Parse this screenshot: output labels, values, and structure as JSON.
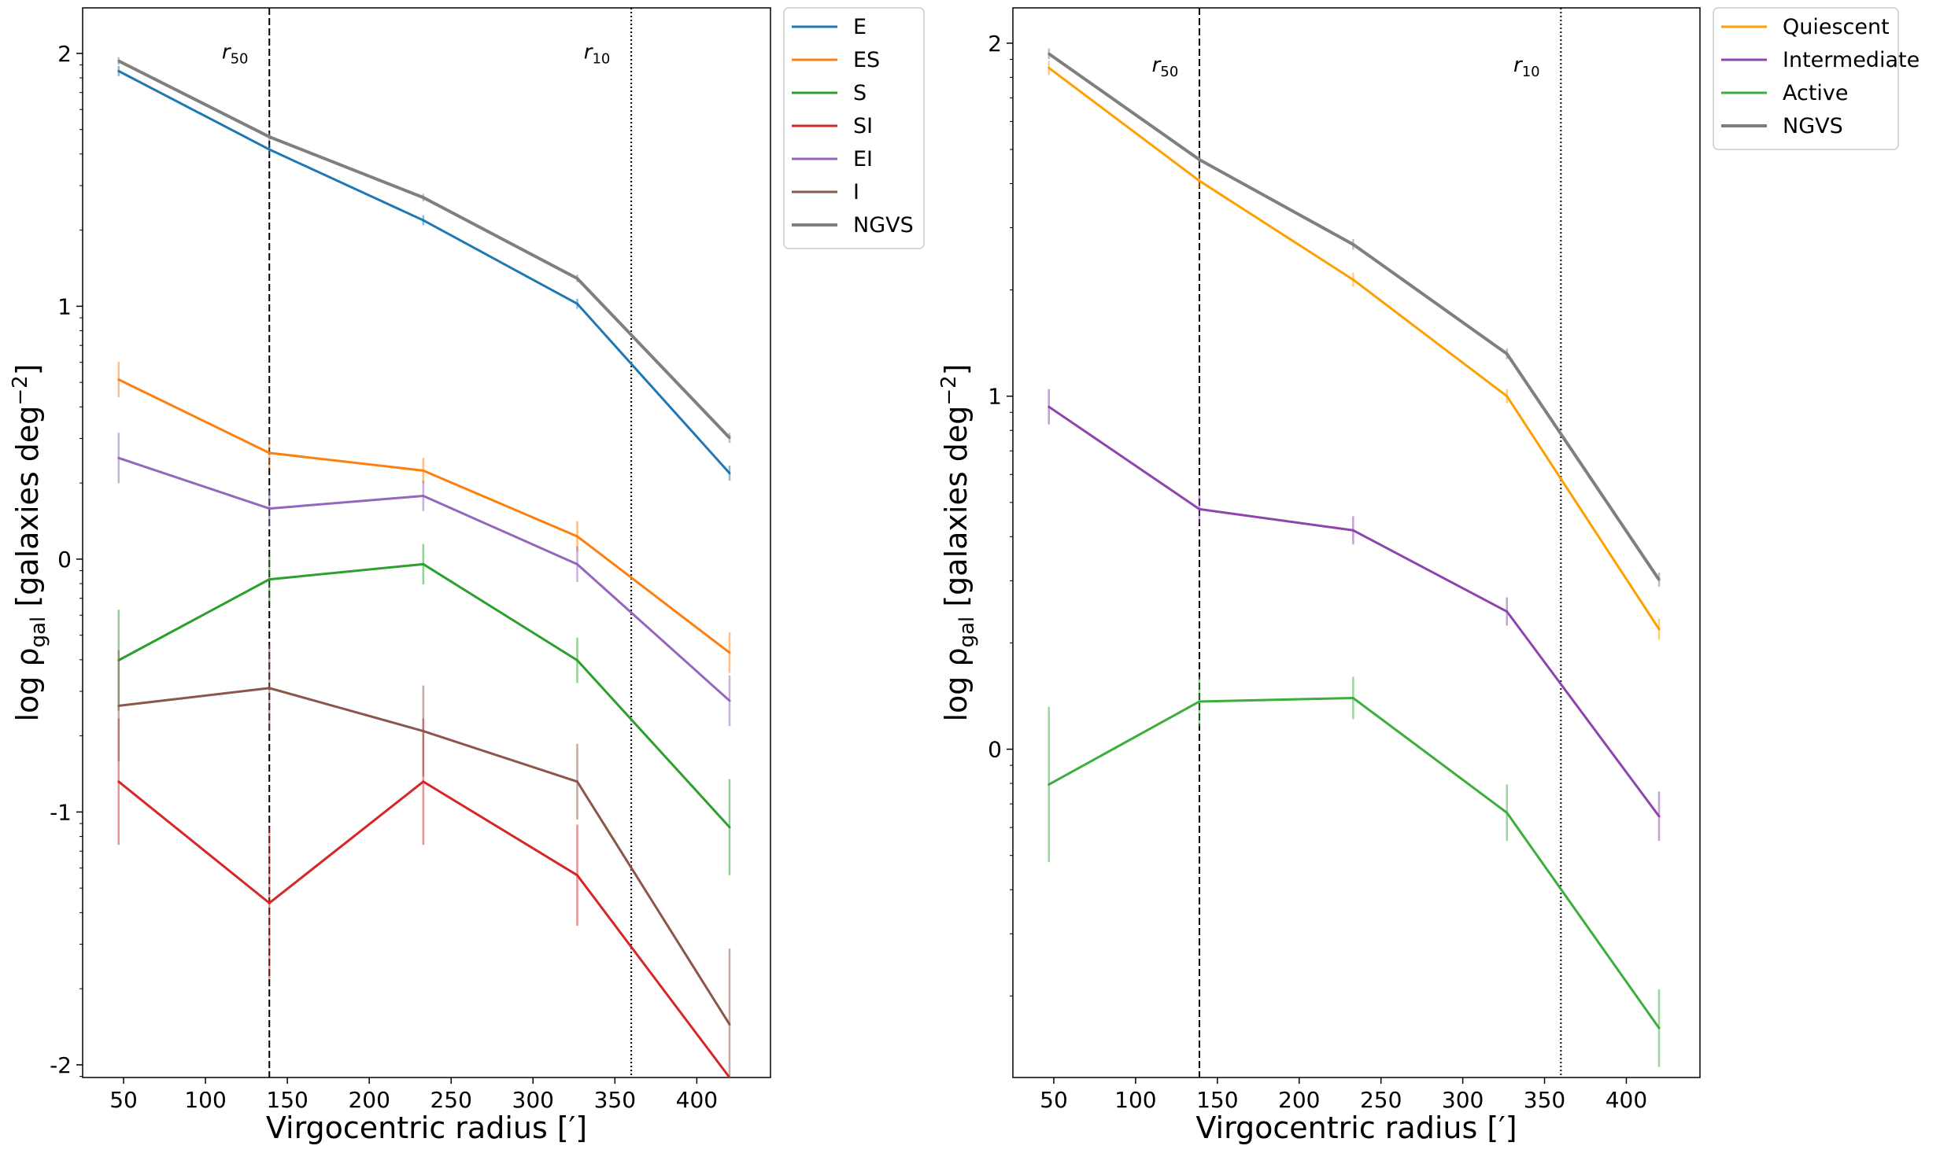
{
  "chart_data": [
    {
      "type": "line",
      "panel": "left",
      "xlabel": "Virgocentric radius [′]",
      "ylabel": "log ρgal [galaxies deg−2]",
      "xlim": [
        25,
        445
      ],
      "ylim": [
        -2.05,
        2.18
      ],
      "xticks": [
        50,
        100,
        150,
        200,
        250,
        300,
        350,
        400
      ],
      "yticks": [
        -2,
        -1,
        0,
        1,
        2
      ],
      "ytick_labels": [
        "-2",
        "-1",
        "0",
        "1",
        "2"
      ],
      "minor_yticks": true,
      "grid": false,
      "legend_position": "outside-upper-right",
      "vlines": [
        {
          "x": 139,
          "style": "dashed",
          "label": "r",
          "label_sub": "50",
          "label_x": 110,
          "label_y": 1.98
        },
        {
          "x": 360,
          "style": "dotted",
          "label": "r",
          "label_sub": "10",
          "label_x": 331,
          "label_y": 1.98
        }
      ],
      "x": [
        47,
        139,
        233,
        327,
        420
      ],
      "series": [
        {
          "name": "E",
          "color": "#1f77b4",
          "values": [
            1.93,
            1.62,
            1.34,
            1.01,
            0.34
          ],
          "errors": [
            0.02,
            0.02,
            0.02,
            0.02,
            0.03
          ]
        },
        {
          "name": "ES",
          "color": "#ff7f0e",
          "values": [
            0.71,
            0.42,
            0.35,
            0.09,
            -0.37
          ],
          "errors": [
            0.07,
            0.06,
            0.05,
            0.06,
            0.08
          ]
        },
        {
          "name": "S",
          "color": "#2ca02c",
          "values": [
            -0.4,
            -0.08,
            -0.02,
            -0.4,
            -1.06
          ],
          "errors": [
            0.2,
            0.09,
            0.08,
            0.09,
            0.19
          ]
        },
        {
          "name": "SI",
          "color": "#d62728",
          "values": [
            -0.88,
            -1.36,
            -0.88,
            -1.25,
            -2.05
          ],
          "errors": [
            0.25,
            0.3,
            0.25,
            0.2,
            0.0
          ]
        },
        {
          "name": "EI",
          "color": "#9467bd",
          "values": [
            0.4,
            0.2,
            0.25,
            -0.02,
            -0.56
          ],
          "errors": [
            0.1,
            0.07,
            0.06,
            0.07,
            0.1
          ]
        },
        {
          "name": "I",
          "color": "#8c564b",
          "values": [
            -0.58,
            -0.51,
            -0.68,
            -0.88,
            -1.84
          ],
          "errors": [
            0.22,
            0.17,
            0.18,
            0.15,
            0.3
          ]
        },
        {
          "name": "NGVS",
          "color": "#7f7f7f",
          "values": [
            1.97,
            1.67,
            1.43,
            1.11,
            0.48
          ],
          "errors": [
            0.015,
            0.015,
            0.015,
            0.015,
            0.02
          ]
        }
      ]
    },
    {
      "type": "line",
      "panel": "right",
      "xlabel": "Virgocentric radius [′]",
      "ylabel": "log ρgal [galaxies deg−2]",
      "xlim": [
        25,
        445
      ],
      "ylim": [
        -0.93,
        2.1
      ],
      "xticks": [
        50,
        100,
        150,
        200,
        250,
        300,
        350,
        400
      ],
      "yticks": [
        0,
        1,
        2
      ],
      "ytick_labels": [
        "0",
        "1",
        "2"
      ],
      "minor_yticks": true,
      "grid": false,
      "legend_position": "outside-upper-right",
      "vlines": [
        {
          "x": 139,
          "style": "dashed",
          "label": "r",
          "label_sub": "50",
          "label_x": 110,
          "label_y": 1.92
        },
        {
          "x": 360,
          "style": "dotted",
          "label": "r",
          "label_sub": "10",
          "label_x": 331,
          "label_y": 1.92
        }
      ],
      "x": [
        47,
        139,
        233,
        327,
        420
      ],
      "series": [
        {
          "name": "Quiescent",
          "color": "#ff9f00",
          "values": [
            1.93,
            1.61,
            1.33,
            1.0,
            0.34
          ],
          "errors": [
            0.02,
            0.02,
            0.02,
            0.02,
            0.03
          ]
        },
        {
          "name": "Intermediate",
          "color": "#8e44ad",
          "values": [
            0.97,
            0.68,
            0.62,
            0.39,
            -0.19
          ],
          "errors": [
            0.05,
            0.04,
            0.04,
            0.04,
            0.07
          ]
        },
        {
          "name": "Active",
          "color": "#3cae3c",
          "values": [
            -0.1,
            0.135,
            0.145,
            -0.18,
            -0.79
          ],
          "errors": [
            0.22,
            0.07,
            0.06,
            0.08,
            0.11
          ]
        },
        {
          "name": "NGVS",
          "color": "#7f7f7f",
          "values": [
            1.97,
            1.67,
            1.43,
            1.12,
            0.48
          ],
          "errors": [
            0.015,
            0.015,
            0.015,
            0.015,
            0.02
          ]
        }
      ]
    }
  ]
}
